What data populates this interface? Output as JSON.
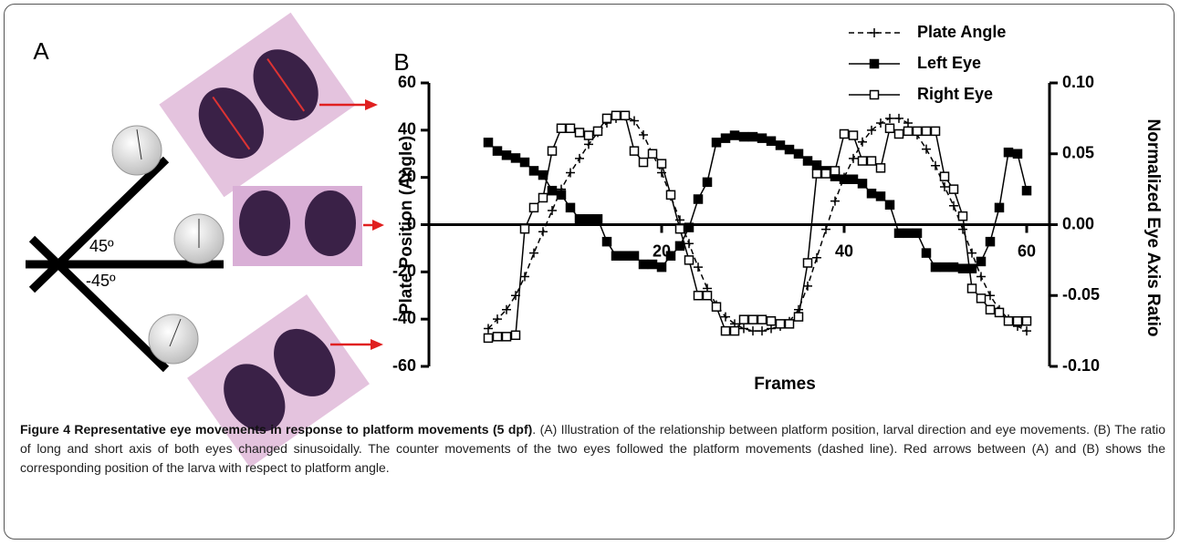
{
  "panel_a": {
    "label": "A",
    "angle_up": "45º",
    "angle_down": "-45º"
  },
  "chart_data": {
    "type": "line",
    "panel_label": "B",
    "xlabel": "Frames",
    "ylabel": "Plate Position (Angle)",
    "y2label": "Normalized Eye Axis Ratio",
    "x": [
      1,
      2,
      3,
      4,
      5,
      6,
      7,
      8,
      9,
      10,
      11,
      12,
      13,
      14,
      15,
      16,
      17,
      18,
      19,
      20,
      21,
      22,
      23,
      24,
      25,
      26,
      27,
      28,
      29,
      30,
      31,
      32,
      33,
      34,
      35,
      36,
      37,
      38,
      39,
      40,
      41,
      42,
      43,
      44,
      45,
      46,
      47,
      48,
      49,
      50,
      51,
      52,
      53,
      54,
      55,
      56,
      57,
      58,
      59,
      60
    ],
    "xlim": [
      -5.5,
      62.5
    ],
    "xticks": [
      20,
      40,
      60
    ],
    "ylim": [
      -60,
      60
    ],
    "yticks": [
      -60,
      -40,
      -20,
      0,
      20,
      40,
      60
    ],
    "y2lim": [
      -0.1,
      0.1
    ],
    "y2ticks": [
      {
        "value": -0.1,
        "label": "-0.10"
      },
      {
        "value": -0.05,
        "label": "-0.05"
      },
      {
        "value": 0,
        "label": "0.00"
      },
      {
        "value": 0.05,
        "label": "0.05"
      },
      {
        "value": 0.1,
        "label": "0.10"
      }
    ],
    "legend": "top-right",
    "series": [
      {
        "name": "Plate Angle",
        "color": "#000000",
        "marker": "plus",
        "dashed": true,
        "values": [
          -44,
          -40,
          -36,
          -30,
          -22,
          -12,
          -3,
          6,
          15,
          22,
          28,
          34,
          39,
          43,
          45,
          46,
          44,
          38,
          30,
          22,
          12,
          2,
          -8,
          -18,
          -27,
          -34,
          -39,
          -42,
          -44,
          -45,
          -45,
          -44,
          -43,
          -41,
          -36,
          -26,
          -14,
          -2,
          10,
          20,
          28,
          35,
          40,
          43,
          45,
          45,
          43,
          38,
          32,
          25,
          16,
          8,
          -2,
          -12,
          -22,
          -30,
          -36,
          -40,
          -43,
          -45
        ]
      },
      {
        "name": "Left Eye",
        "color": "#000000",
        "marker": "filled-square",
        "dashed": false,
        "axis": "y2",
        "values": [
          0.058,
          0.052,
          0.049,
          0.047,
          0.044,
          0.038,
          0.035,
          0.024,
          0.021,
          0.012,
          0.004,
          0.004,
          0.004,
          -0.012,
          -0.022,
          -0.022,
          -0.022,
          -0.028,
          -0.028,
          -0.03,
          -0.022,
          -0.015,
          -0.002,
          0.018,
          0.03,
          0.058,
          0.061,
          0.063,
          0.062,
          0.062,
          0.061,
          0.059,
          0.056,
          0.053,
          0.05,
          0.045,
          0.042,
          0.038,
          0.034,
          0.032,
          0.032,
          0.029,
          0.022,
          0.02,
          0.014,
          -0.006,
          -0.006,
          -0.006,
          -0.02,
          -0.03,
          -0.03,
          -0.03,
          -0.031,
          -0.031,
          -0.026,
          -0.012,
          0.012,
          0.051,
          0.05,
          0.024
        ]
      },
      {
        "name": "Right Eye",
        "color": "#000000",
        "marker": "open-square",
        "dashed": false,
        "axis": "y2",
        "values": [
          -0.08,
          -0.079,
          -0.079,
          -0.078,
          -0.003,
          0.012,
          0.019,
          0.052,
          0.068,
          0.068,
          0.065,
          0.063,
          0.066,
          0.075,
          0.077,
          0.077,
          0.052,
          0.044,
          0.05,
          0.043,
          0.021,
          -0.003,
          -0.025,
          -0.05,
          -0.05,
          -0.058,
          -0.075,
          -0.075,
          -0.067,
          -0.067,
          -0.067,
          -0.068,
          -0.07,
          -0.07,
          -0.065,
          -0.027,
          0.036,
          0.036,
          0.038,
          0.064,
          0.063,
          0.045,
          0.045,
          0.04,
          0.068,
          0.064,
          0.066,
          0.066,
          0.066,
          0.066,
          0.034,
          0.025,
          0.006,
          -0.045,
          -0.052,
          -0.06,
          -0.062,
          -0.068,
          -0.068,
          -0.068
        ]
      }
    ]
  },
  "caption": {
    "label": "Figure 4",
    "title": "Representative eye movements in response to platform movements (5 dpf)",
    "text": ". (A) Illustration of the relationship between platform position, larval direction and eye movements. (B) The ratio of long and short axis of both eyes changed sinusoidally. The counter movements of the two eyes followed the platform movements (dashed line). Red arrows between (A) and (B) shows the corresponding position of the larva with respect to platform angle."
  }
}
